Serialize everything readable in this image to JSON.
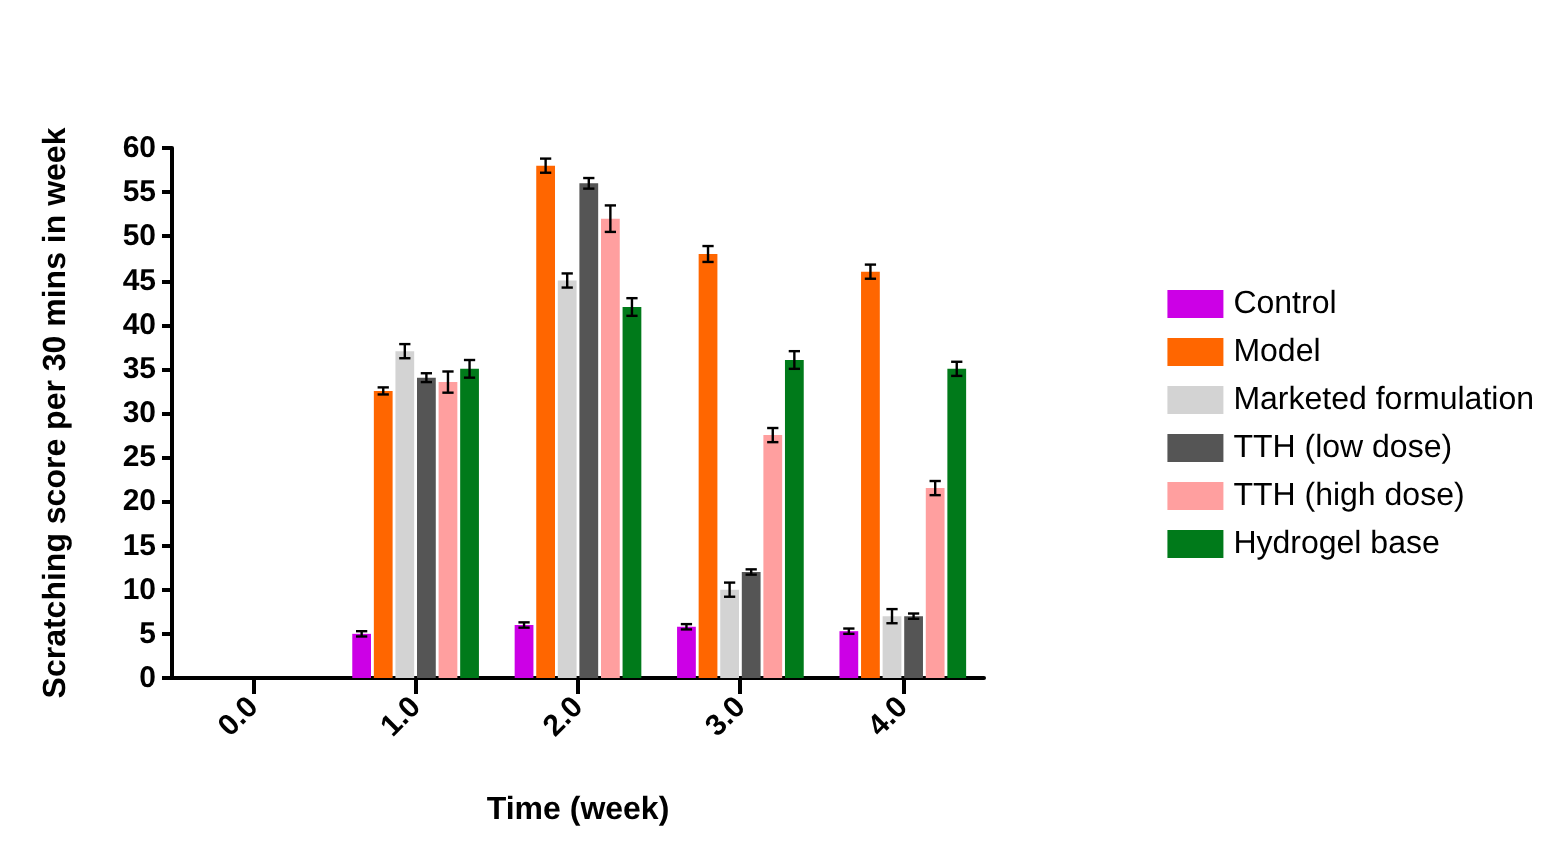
{
  "chart_data": {
    "type": "bar",
    "xlabel": "Time (week)",
    "ylabel": "Scratching score per 30 mins in week",
    "categories": [
      "0.0",
      "1.0",
      "2.0",
      "3.0",
      "4.0"
    ],
    "series": [
      {
        "name": "Control",
        "color": "#cc00e6",
        "values": [
          0,
          5,
          6,
          5.8,
          5.3
        ],
        "errors": [
          null,
          0.3,
          0.3,
          0.3,
          0.3
        ]
      },
      {
        "name": "Model",
        "color": "#ff6600",
        "values": [
          0,
          32.5,
          58,
          48,
          46
        ],
        "errors": [
          null,
          0.4,
          0.8,
          0.9,
          0.8
        ]
      },
      {
        "name": "Marketed formulation",
        "color": "#d3d3d3",
        "values": [
          0,
          37,
          45,
          10,
          7
        ],
        "errors": [
          null,
          0.8,
          0.8,
          0.8,
          0.8
        ]
      },
      {
        "name": "TTH (low dose)",
        "color": "#555555",
        "values": [
          0,
          34,
          56,
          12,
          7
        ],
        "errors": [
          null,
          0.5,
          0.6,
          0.3,
          0.3
        ]
      },
      {
        "name": "TTH (high dose)",
        "color": "#ff9f9f",
        "values": [
          0,
          33.5,
          52,
          27.5,
          21.5
        ],
        "errors": [
          null,
          1.2,
          1.5,
          0.8,
          0.8
        ]
      },
      {
        "name": "Hydrogel base",
        "color": "#007a1a",
        "values": [
          0,
          35,
          42,
          36,
          35
        ],
        "errors": [
          null,
          1,
          1,
          1,
          0.8
        ]
      }
    ],
    "ylim": [
      0,
      60
    ],
    "yticks": [
      0,
      5,
      10,
      15,
      20,
      25,
      30,
      35,
      40,
      45,
      50,
      55,
      60
    ],
    "grid": false,
    "legend": "right"
  }
}
